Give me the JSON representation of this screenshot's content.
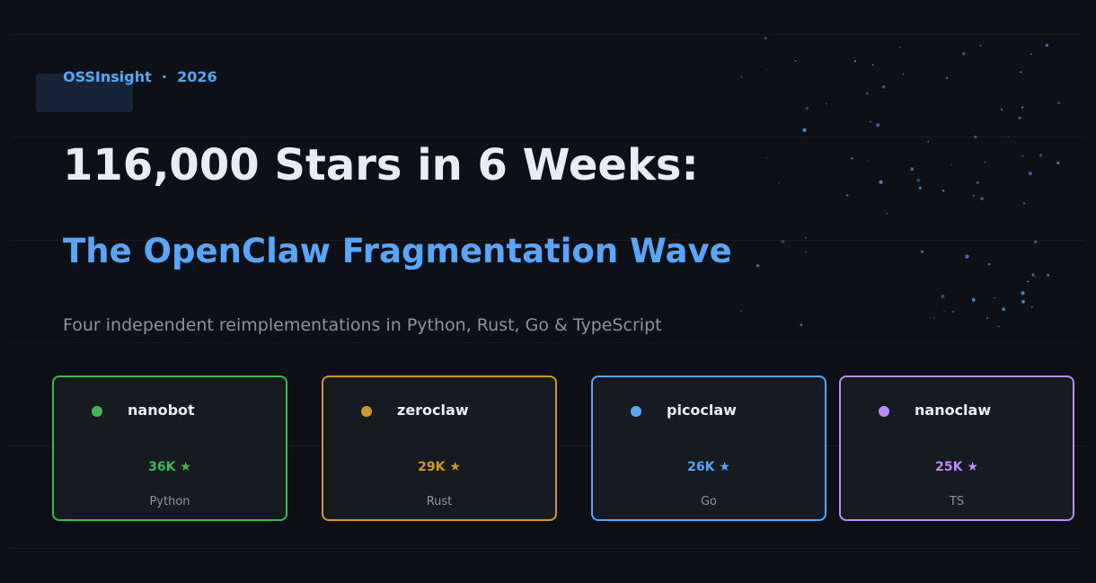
{
  "header": {
    "brand": "OSSInsight  ·  2026",
    "title": "116,000 Stars in 6 Weeks:",
    "subtitle": "The OpenClaw Fragmentation Wave",
    "tagline": "Four independent reimplementations in Python, Rust, Go & TypeScript"
  },
  "colors": {
    "background": "#0d1117",
    "accent": "#58a6ff"
  },
  "cards": [
    {
      "name": "nanobot",
      "stars": "36K ★",
      "lang": "Python",
      "color": "#3fb950"
    },
    {
      "name": "zeroclaw",
      "stars": "29K ★",
      "lang": "Rust",
      "color": "#d29922"
    },
    {
      "name": "picoclaw",
      "stars": "26K ★",
      "lang": "Go",
      "color": "#58a6ff"
    },
    {
      "name": "nanoclaw",
      "stars": "25K ★",
      "lang": "TS",
      "color": "#bc8cff"
    }
  ]
}
